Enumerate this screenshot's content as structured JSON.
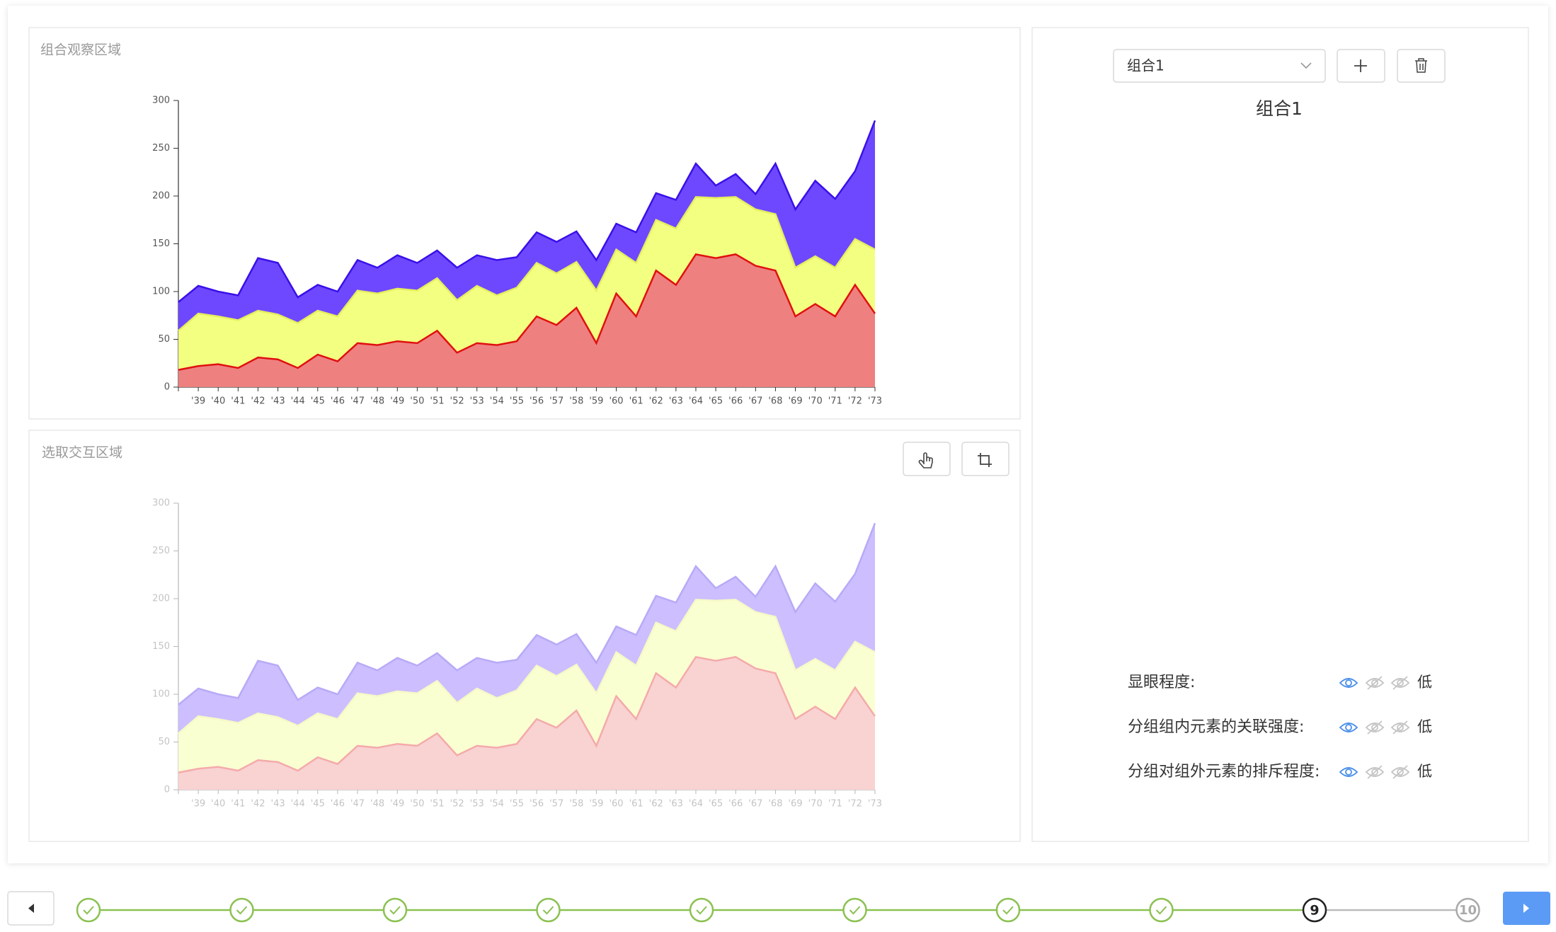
{
  "panels": {
    "observe_title": "组合观察区域",
    "select_title": "选取交互区域"
  },
  "sidebar": {
    "select_value": "组合1",
    "group_title": "组合1",
    "metrics": [
      {
        "label": "显眼程度:",
        "level": "低"
      },
      {
        "label": "分组组内元素的关联强度:",
        "level": "低"
      },
      {
        "label": "分组对组外元素的排斥程度:",
        "level": "低"
      }
    ]
  },
  "steps": {
    "completed": 8,
    "current": "9",
    "last": "10"
  },
  "chart_data": {
    "type": "stacked-area",
    "categories": [
      null,
      "'39",
      "'40",
      "'41",
      "'42",
      "'43",
      "'44",
      "'45",
      "'46",
      "'47",
      "'48",
      "'49",
      "'50",
      "'51",
      "'52",
      "'53",
      "'54",
      "'55",
      "'56",
      "'57",
      "'58",
      "'59",
      "'60",
      "'61",
      "'62",
      "'63",
      "'64",
      "'65",
      "'66",
      "'67",
      "'68",
      "'69",
      "'70",
      "'71",
      "'72",
      "'73"
    ],
    "series": [
      {
        "color": "#e01010",
        "fill": "#ee8080",
        "values": [
          18,
          22,
          24,
          20,
          31,
          29,
          20,
          34,
          27,
          46,
          44,
          48,
          46,
          59,
          36,
          46,
          44,
          48,
          74,
          65,
          83,
          46,
          98,
          74,
          122,
          107,
          139,
          135,
          139,
          127,
          122,
          74,
          87,
          74,
          107,
          77
        ]
      },
      {
        "color": "#e6ee5e",
        "fill": "#f3ff80",
        "values": [
          41,
          55,
          50,
          50,
          49,
          47,
          47,
          46,
          47,
          55,
          54,
          55,
          55,
          55,
          55,
          60,
          52,
          56,
          56,
          54,
          48,
          55,
          46,
          56,
          53,
          59,
          60,
          63,
          60,
          59,
          59,
          51,
          50,
          51,
          48,
          67
        ]
      },
      {
        "color": "#3a10e8",
        "fill": "#6e48ff",
        "values": [
          30,
          29,
          26,
          26,
          55,
          54,
          27,
          27,
          26,
          32,
          27,
          35,
          29,
          29,
          34,
          32,
          37,
          32,
          32,
          33,
          32,
          32,
          27,
          32,
          28,
          30,
          35,
          13,
          24,
          16,
          53,
          61,
          79,
          72,
          71,
          135
        ]
      }
    ],
    "ylim": [
      0,
      300
    ],
    "yticks": [
      0,
      50,
      100,
      150,
      200,
      250,
      300
    ]
  }
}
